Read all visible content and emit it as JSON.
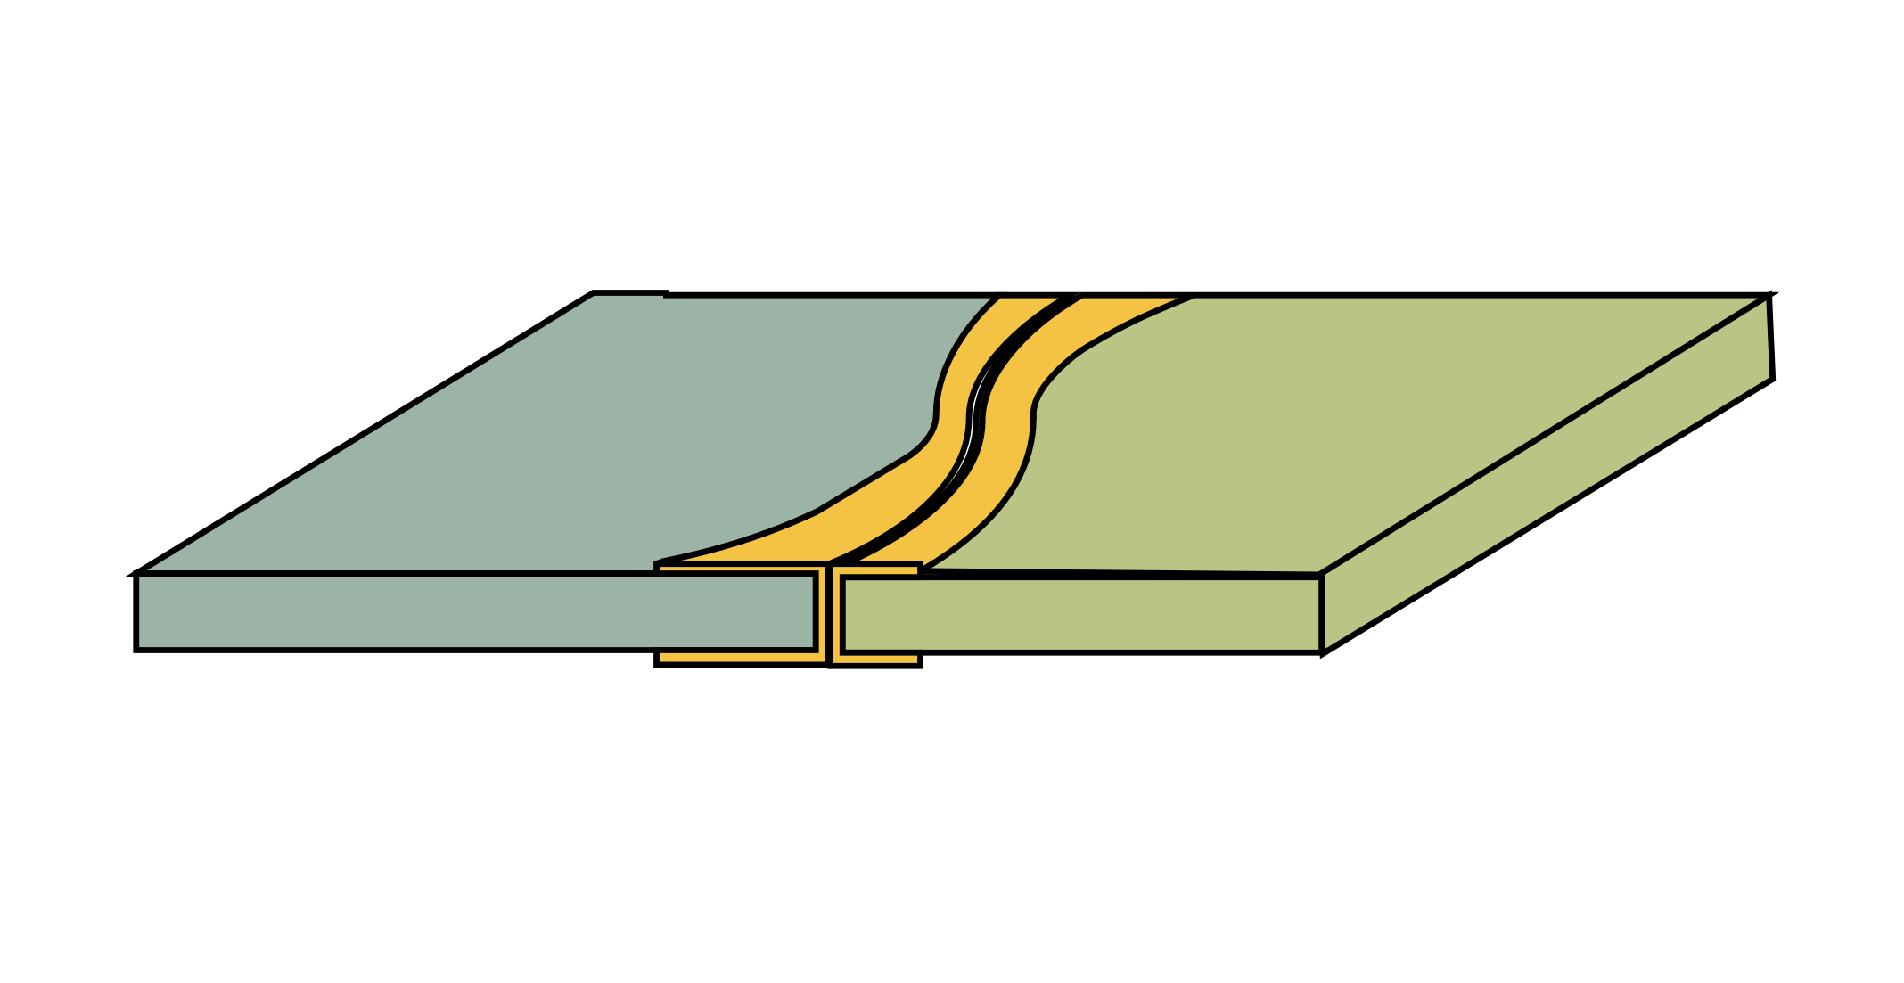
{
  "diagram": {
    "type": "joint-cross-section",
    "colors": {
      "left_plate": "#9cb4a6",
      "right_plate": "#b9c585",
      "joint_layer": "#f4c343",
      "outline": "#000000",
      "background": "#ffffff"
    },
    "parts": [
      "left-plate",
      "right-plate",
      "joint-layer-upper",
      "joint-layer-lower",
      "joint-flange"
    ]
  }
}
